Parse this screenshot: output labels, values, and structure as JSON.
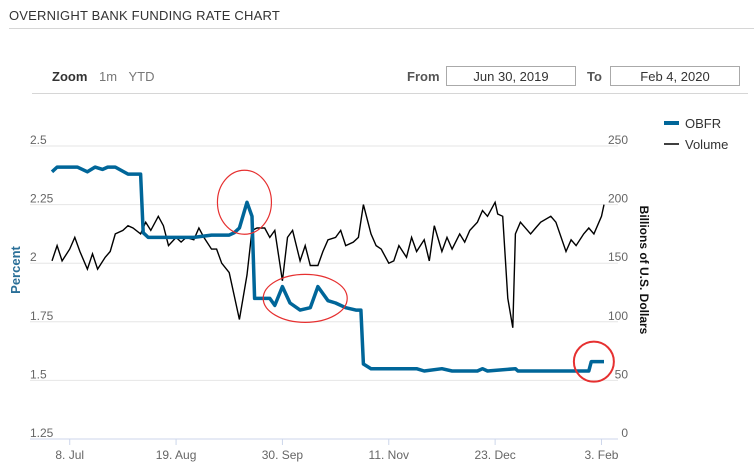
{
  "header": {
    "title": "OVERNIGHT BANK FUNDING RATE CHART"
  },
  "toolbar": {
    "zoom_label": "Zoom",
    "zoom_buttons": [
      "1m",
      "YTD"
    ],
    "from_label": "From",
    "from_value": "Jun 30, 2019",
    "to_label": "To",
    "to_value": "Feb 4, 2020"
  },
  "colors": {
    "obfr": "#006699",
    "volume": "#000000",
    "highlight": "#e63030"
  },
  "chart_data": {
    "type": "line",
    "title": "",
    "xlabel": "",
    "ylabel": "Percent",
    "y2label": "Billions of U.S. Dollars",
    "x_range": [
      "2019-07-01",
      "2020-02-04"
    ],
    "ylim": [
      1.25,
      2.5
    ],
    "y2lim": [
      0,
      250
    ],
    "x_ticks": [
      {
        "date": "2019-07-08",
        "label": "8. Jul"
      },
      {
        "date": "2019-08-19",
        "label": "19. Aug"
      },
      {
        "date": "2019-09-30",
        "label": "30. Sep"
      },
      {
        "date": "2019-11-11",
        "label": "11. Nov"
      },
      {
        "date": "2019-12-23",
        "label": "23. Dec"
      },
      {
        "date": "2020-02-03",
        "label": "3. Feb"
      }
    ],
    "y_ticks": [
      "1.25",
      "1.5",
      "1.75",
      "2",
      "2.25",
      "2.5"
    ],
    "y2_ticks": [
      "0",
      "50",
      "100",
      "150",
      "200",
      "250"
    ],
    "grid": true,
    "legend": "top-right",
    "series": [
      {
        "name": "OBFR",
        "axis": "left",
        "points": [
          [
            "2019-07-01",
            2.39
          ],
          [
            "2019-07-03",
            2.41
          ],
          [
            "2019-07-08",
            2.41
          ],
          [
            "2019-07-11",
            2.41
          ],
          [
            "2019-07-15",
            2.39
          ],
          [
            "2019-07-18",
            2.41
          ],
          [
            "2019-07-21",
            2.4
          ],
          [
            "2019-07-23",
            2.41
          ],
          [
            "2019-07-26",
            2.41
          ],
          [
            "2019-07-31",
            2.38
          ],
          [
            "2019-08-02",
            2.38
          ],
          [
            "2019-08-05",
            2.38
          ],
          [
            "2019-08-06",
            2.13
          ],
          [
            "2019-08-08",
            2.11
          ],
          [
            "2019-08-12",
            2.11
          ],
          [
            "2019-08-19",
            2.11
          ],
          [
            "2019-08-26",
            2.11
          ],
          [
            "2019-09-02",
            2.12
          ],
          [
            "2019-09-09",
            2.12
          ],
          [
            "2019-09-11",
            2.13
          ],
          [
            "2019-09-13",
            2.15
          ],
          [
            "2019-09-16",
            2.26
          ],
          [
            "2019-09-18",
            2.2
          ],
          [
            "2019-09-19",
            1.85
          ],
          [
            "2019-09-25",
            1.85
          ],
          [
            "2019-09-27",
            1.82
          ],
          [
            "2019-09-30",
            1.9
          ],
          [
            "2019-10-03",
            1.83
          ],
          [
            "2019-10-07",
            1.8
          ],
          [
            "2019-10-11",
            1.81
          ],
          [
            "2019-10-14",
            1.9
          ],
          [
            "2019-10-18",
            1.84
          ],
          [
            "2019-10-21",
            1.83
          ],
          [
            "2019-10-25",
            1.81
          ],
          [
            "2019-10-29",
            1.8
          ],
          [
            "2019-10-31",
            1.8
          ],
          [
            "2019-11-01",
            1.57
          ],
          [
            "2019-11-04",
            1.55
          ],
          [
            "2019-11-11",
            1.55
          ],
          [
            "2019-11-22",
            1.55
          ],
          [
            "2019-11-25",
            1.54
          ],
          [
            "2019-12-02",
            1.55
          ],
          [
            "2019-12-06",
            1.54
          ],
          [
            "2019-12-16",
            1.54
          ],
          [
            "2019-12-18",
            1.55
          ],
          [
            "2019-12-20",
            1.54
          ],
          [
            "2019-12-31",
            1.55
          ],
          [
            "2020-01-01",
            1.54
          ],
          [
            "2020-01-29",
            1.54
          ],
          [
            "2020-01-30",
            1.58
          ],
          [
            "2020-02-04",
            1.58
          ]
        ]
      },
      {
        "name": "Volume",
        "axis": "right",
        "points": [
          [
            "2019-07-01",
            152
          ],
          [
            "2019-07-03",
            165
          ],
          [
            "2019-07-05",
            152
          ],
          [
            "2019-07-08",
            162
          ],
          [
            "2019-07-10",
            172
          ],
          [
            "2019-07-12",
            160
          ],
          [
            "2019-07-15",
            145
          ],
          [
            "2019-07-17",
            158
          ],
          [
            "2019-07-19",
            145
          ],
          [
            "2019-07-22",
            155
          ],
          [
            "2019-07-24",
            160
          ],
          [
            "2019-07-26",
            175
          ],
          [
            "2019-07-29",
            178
          ],
          [
            "2019-07-31",
            182
          ],
          [
            "2019-08-02",
            180
          ],
          [
            "2019-08-05",
            175
          ],
          [
            "2019-08-07",
            185
          ],
          [
            "2019-08-09",
            178
          ],
          [
            "2019-08-12",
            190
          ],
          [
            "2019-08-14",
            182
          ],
          [
            "2019-08-16",
            165
          ],
          [
            "2019-08-19",
            172
          ],
          [
            "2019-08-21",
            168
          ],
          [
            "2019-08-23",
            172
          ],
          [
            "2019-08-26",
            170
          ],
          [
            "2019-08-28",
            180
          ],
          [
            "2019-08-30",
            172
          ],
          [
            "2019-09-02",
            162
          ],
          [
            "2019-09-04",
            162
          ],
          [
            "2019-09-06",
            150
          ],
          [
            "2019-09-09",
            142
          ],
          [
            "2019-09-11",
            122
          ],
          [
            "2019-09-13",
            102
          ],
          [
            "2019-09-16",
            140
          ],
          [
            "2019-09-18",
            178
          ],
          [
            "2019-09-20",
            180
          ],
          [
            "2019-09-23",
            180
          ],
          [
            "2019-09-25",
            172
          ],
          [
            "2019-09-27",
            178
          ],
          [
            "2019-09-30",
            135
          ],
          [
            "2019-10-02",
            172
          ],
          [
            "2019-10-04",
            178
          ],
          [
            "2019-10-07",
            152
          ],
          [
            "2019-10-09",
            165
          ],
          [
            "2019-10-11",
            148
          ],
          [
            "2019-10-14",
            148
          ],
          [
            "2019-10-16",
            160
          ],
          [
            "2019-10-18",
            170
          ],
          [
            "2019-10-21",
            172
          ],
          [
            "2019-10-23",
            178
          ],
          [
            "2019-10-25",
            165
          ],
          [
            "2019-10-28",
            168
          ],
          [
            "2019-10-30",
            172
          ],
          [
            "2019-11-01",
            200
          ],
          [
            "2019-11-04",
            175
          ],
          [
            "2019-11-06",
            165
          ],
          [
            "2019-11-08",
            162
          ],
          [
            "2019-11-11",
            150
          ],
          [
            "2019-11-13",
            152
          ],
          [
            "2019-11-15",
            165
          ],
          [
            "2019-11-18",
            155
          ],
          [
            "2019-11-20",
            172
          ],
          [
            "2019-11-22",
            160
          ],
          [
            "2019-11-25",
            170
          ],
          [
            "2019-11-27",
            152
          ],
          [
            "2019-11-29",
            182
          ],
          [
            "2019-12-02",
            160
          ],
          [
            "2019-12-04",
            172
          ],
          [
            "2019-12-06",
            162
          ],
          [
            "2019-12-09",
            175
          ],
          [
            "2019-12-11",
            168
          ],
          [
            "2019-12-13",
            178
          ],
          [
            "2019-12-16",
            185
          ],
          [
            "2019-12-18",
            195
          ],
          [
            "2019-12-20",
            190
          ],
          [
            "2019-12-23",
            202
          ],
          [
            "2019-12-24",
            192
          ],
          [
            "2019-12-26",
            190
          ],
          [
            "2019-12-28",
            120
          ],
          [
            "2019-12-30",
            95
          ],
          [
            "2019-12-31",
            175
          ],
          [
            "2020-01-02",
            185
          ],
          [
            "2020-01-06",
            175
          ],
          [
            "2020-01-08",
            180
          ],
          [
            "2020-01-10",
            185
          ],
          [
            "2020-01-14",
            190
          ],
          [
            "2020-01-16",
            185
          ],
          [
            "2020-01-20",
            160
          ],
          [
            "2020-01-22",
            170
          ],
          [
            "2020-01-24",
            165
          ],
          [
            "2020-01-27",
            175
          ],
          [
            "2020-01-29",
            180
          ],
          [
            "2020-01-31",
            175
          ],
          [
            "2020-02-03",
            190
          ],
          [
            "2020-02-04",
            200
          ]
        ]
      }
    ],
    "annotations": [
      {
        "type": "ellipse",
        "x": "2019-09-15",
        "y": 2.26
      },
      {
        "type": "ellipse",
        "x": "2019-10-09",
        "y": 1.85
      },
      {
        "type": "circle",
        "x": "2020-01-31",
        "y": 1.58
      }
    ]
  }
}
